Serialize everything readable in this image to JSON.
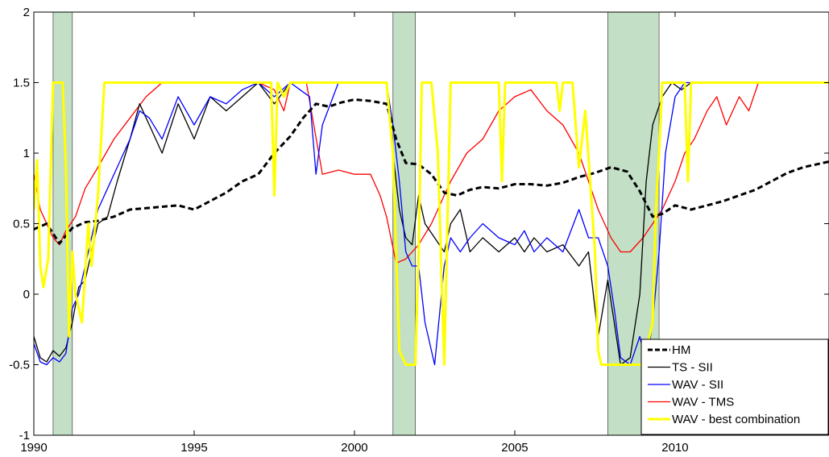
{
  "chart_data": {
    "type": "line",
    "title": "",
    "xlabel": "",
    "ylabel": "",
    "xlim": [
      1990,
      2014.8
    ],
    "ylim": [
      -1,
      2
    ],
    "grid": false,
    "legend_position": "bottom-right",
    "x_ticks": [
      1990,
      1995,
      2000,
      2005,
      2010
    ],
    "y_ticks": [
      -1,
      -0.5,
      0,
      0.5,
      1,
      1.5,
      2
    ],
    "x_tick_labels": [
      "1990",
      "1995",
      "2000",
      "2005",
      "2010"
    ],
    "y_tick_labels": [
      "-1",
      "-0.5",
      "0",
      "0.5",
      "1",
      "1.5",
      "2"
    ],
    "shaded_periods": [
      [
        1990.6,
        1991.2
      ],
      [
        2001.2,
        2001.9
      ],
      [
        2007.9,
        2009.5
      ]
    ],
    "shade_color": "#c3dfc5",
    "series": [
      {
        "name": "HM",
        "color": "#000000",
        "dash": "dashed",
        "width": 3,
        "x": [
          1990.0,
          1990.4,
          1990.8,
          1991.2,
          1991.6,
          1992.0,
          1992.5,
          1993.0,
          1993.5,
          1994.0,
          1994.5,
          1995.0,
          1995.5,
          1996.0,
          1996.5,
          1997.0,
          1997.5,
          1998.0,
          1998.4,
          1998.8,
          1999.2,
          1999.6,
          2000.0,
          2000.5,
          2001.0,
          2001.3,
          2001.6,
          2002.0,
          2002.4,
          2002.8,
          2003.2,
          2003.6,
          2004.0,
          2004.5,
          2005.0,
          2005.5,
          2006.0,
          2006.5,
          2007.0,
          2007.5,
          2008.0,
          2008.5,
          2008.9,
          2009.3,
          2009.6,
          2010.0,
          2010.5,
          2011.0,
          2011.5,
          2012.0,
          2012.5,
          2013.0,
          2013.5,
          2014.0,
          2014.8
        ],
        "y": [
          0.46,
          0.5,
          0.36,
          0.47,
          0.51,
          0.52,
          0.55,
          0.6,
          0.61,
          0.62,
          0.63,
          0.6,
          0.66,
          0.72,
          0.8,
          0.85,
          1.0,
          1.12,
          1.25,
          1.35,
          1.33,
          1.36,
          1.38,
          1.37,
          1.35,
          1.1,
          0.93,
          0.92,
          0.85,
          0.72,
          0.7,
          0.74,
          0.76,
          0.75,
          0.78,
          0.78,
          0.77,
          0.79,
          0.83,
          0.86,
          0.9,
          0.87,
          0.73,
          0.55,
          0.57,
          0.63,
          0.6,
          0.63,
          0.66,
          0.7,
          0.74,
          0.8,
          0.86,
          0.9,
          0.94
        ]
      },
      {
        "name": "TS - SII",
        "color": "#000000",
        "dash": "solid",
        "width": 1.3,
        "x": [
          1990.0,
          1990.2,
          1990.4,
          1990.6,
          1990.8,
          1991.0,
          1991.2,
          1991.4,
          1991.6,
          1991.8,
          1992.0,
          1992.3,
          1992.6,
          1993.0,
          1993.3,
          1993.6,
          1994.0,
          1994.5,
          1995.0,
          1995.5,
          1996.0,
          1996.5,
          1997.0,
          1997.5,
          1998.0,
          1998.5,
          1999.0,
          1999.5,
          2000.0,
          2000.5,
          2001.0,
          2001.2,
          2001.4,
          2001.6,
          2001.8,
          2002.0,
          2002.2,
          2002.5,
          2002.8,
          2003.0,
          2003.3,
          2003.6,
          2004.0,
          2004.5,
          2005.0,
          2005.3,
          2005.6,
          2006.0,
          2006.5,
          2007.0,
          2007.3,
          2007.6,
          2007.9,
          2008.1,
          2008.3,
          2008.6,
          2008.9,
          2009.1,
          2009.3,
          2009.6,
          2009.9,
          2010.2,
          2010.5
        ],
        "y": [
          -0.3,
          -0.45,
          -0.48,
          -0.4,
          -0.44,
          -0.38,
          -0.2,
          0.05,
          0.1,
          0.3,
          0.5,
          0.55,
          0.8,
          1.1,
          1.35,
          1.2,
          1.0,
          1.35,
          1.1,
          1.4,
          1.3,
          1.4,
          1.5,
          1.35,
          1.5,
          1.5,
          1.5,
          1.5,
          1.5,
          1.5,
          1.5,
          1.0,
          0.6,
          0.4,
          0.35,
          0.7,
          0.5,
          0.4,
          0.3,
          0.5,
          0.6,
          0.3,
          0.4,
          0.3,
          0.4,
          0.3,
          0.4,
          0.3,
          0.35,
          0.2,
          0.3,
          -0.3,
          0.1,
          -0.2,
          -0.5,
          -0.45,
          0.0,
          0.8,
          1.2,
          1.4,
          1.5,
          1.45,
          1.5
        ]
      },
      {
        "name": "WAV - SII",
        "color": "#0000ff",
        "dash": "solid",
        "width": 1.3,
        "x": [
          1990.0,
          1990.2,
          1990.4,
          1990.6,
          1990.8,
          1991.0,
          1991.2,
          1991.4,
          1991.6,
          1991.8,
          1992.0,
          1992.3,
          1992.6,
          1993.0,
          1993.3,
          1993.6,
          1994.0,
          1994.5,
          1995.0,
          1995.5,
          1996.0,
          1996.5,
          1997.0,
          1997.5,
          1998.0,
          1998.3,
          1998.6,
          1998.8,
          1999.0,
          1999.5,
          2000.0,
          2000.5,
          2001.0,
          2001.2,
          2001.4,
          2001.6,
          2001.8,
          2002.0,
          2002.2,
          2002.5,
          2002.8,
          2003.0,
          2003.3,
          2003.6,
          2004.0,
          2004.5,
          2005.0,
          2005.3,
          2005.6,
          2006.0,
          2006.5,
          2007.0,
          2007.3,
          2007.6,
          2007.9,
          2008.1,
          2008.3,
          2008.6,
          2008.9,
          2009.1,
          2009.3,
          2009.5,
          2009.7,
          2010.0,
          2010.3,
          2010.6
        ],
        "y": [
          -0.35,
          -0.48,
          -0.5,
          -0.45,
          -0.48,
          -0.42,
          -0.1,
          0.0,
          0.2,
          0.4,
          0.6,
          0.75,
          0.9,
          1.1,
          1.3,
          1.25,
          1.1,
          1.4,
          1.2,
          1.4,
          1.35,
          1.45,
          1.5,
          1.4,
          1.5,
          1.45,
          1.4,
          0.85,
          1.2,
          1.5,
          1.5,
          1.5,
          1.5,
          1.2,
          0.8,
          0.3,
          0.2,
          0.2,
          -0.2,
          -0.5,
          0.2,
          0.4,
          0.3,
          0.4,
          0.5,
          0.4,
          0.35,
          0.45,
          0.3,
          0.4,
          0.3,
          0.6,
          0.4,
          0.4,
          0.2,
          -0.1,
          -0.45,
          -0.5,
          -0.3,
          -0.5,
          -0.2,
          0.3,
          1.0,
          1.4,
          1.5,
          1.5
        ]
      },
      {
        "name": "WAV - TMS",
        "color": "#ff0000",
        "dash": "solid",
        "width": 1.3,
        "x": [
          1990.0,
          1990.2,
          1990.4,
          1990.6,
          1990.8,
          1991.0,
          1991.3,
          1991.6,
          1992.0,
          1992.5,
          1993.0,
          1993.5,
          1994.0,
          1995.0,
          1996.0,
          1997.0,
          1997.5,
          1997.8,
          1998.0,
          1998.5,
          1999.0,
          1999.5,
          2000.0,
          2000.5,
          2000.8,
          2001.0,
          2001.3,
          2001.6,
          2002.0,
          2002.4,
          2002.8,
          2003.0,
          2003.5,
          2004.0,
          2004.5,
          2005.0,
          2005.5,
          2006.0,
          2006.5,
          2007.0,
          2007.3,
          2007.6,
          2008.0,
          2008.3,
          2008.6,
          2009.0,
          2009.3,
          2009.6,
          2010.0,
          2010.3,
          2010.6,
          2011.0,
          2011.3,
          2011.6,
          2012.0,
          2012.3,
          2012.6
        ],
        "y": [
          0.85,
          0.6,
          0.5,
          0.4,
          0.35,
          0.45,
          0.55,
          0.75,
          0.9,
          1.1,
          1.25,
          1.4,
          1.5,
          1.5,
          1.5,
          1.5,
          1.45,
          1.3,
          1.5,
          1.5,
          0.85,
          0.88,
          0.85,
          0.85,
          0.7,
          0.55,
          0.22,
          0.25,
          0.35,
          0.5,
          0.7,
          0.8,
          1.0,
          1.1,
          1.3,
          1.4,
          1.45,
          1.3,
          1.2,
          1.0,
          0.8,
          0.6,
          0.4,
          0.3,
          0.3,
          0.4,
          0.5,
          0.6,
          0.8,
          1.0,
          1.1,
          1.3,
          1.4,
          1.2,
          1.4,
          1.3,
          1.5
        ]
      },
      {
        "name": "WAV - best combination",
        "color": "#ffff00",
        "dash": "solid",
        "width": 3,
        "x": [
          1990.0,
          1990.1,
          1990.2,
          1990.3,
          1990.45,
          1990.6,
          1990.7,
          1990.9,
          1991.0,
          1991.1,
          1991.2,
          1991.3,
          1991.5,
          1991.7,
          1991.8,
          1992.0,
          1992.2,
          1993.0,
          1994.0,
          1995.0,
          1996.0,
          1997.0,
          1997.4,
          1997.5,
          1997.6,
          1997.8,
          1998.0,
          1999.0,
          2000.0,
          2001.0,
          2001.2,
          2001.4,
          2001.6,
          2001.8,
          2001.9,
          2002.0,
          2002.1,
          2002.2,
          2002.4,
          2002.6,
          2002.8,
          2002.9,
          2003.0,
          2003.2,
          2003.4,
          2003.6,
          2004.0,
          2004.5,
          2004.6,
          2004.7,
          2005.0,
          2005.5,
          2006.0,
          2006.3,
          2006.4,
          2006.5,
          2006.8,
          2007.0,
          2007.2,
          2007.5,
          2007.6,
          2007.7,
          2007.8,
          2008.0,
          2008.5,
          2009.0,
          2009.1,
          2009.3,
          2009.4,
          2009.5,
          2009.6,
          2009.8,
          2010.0,
          2010.3,
          2010.4,
          2010.5,
          2011.0,
          2012.0,
          2013.0,
          2014.0,
          2014.8
        ],
        "y": [
          0.6,
          0.95,
          0.2,
          0.05,
          0.25,
          1.5,
          1.5,
          1.5,
          0.9,
          -0.3,
          0.3,
          0.0,
          -0.2,
          0.5,
          0.2,
          0.7,
          1.5,
          1.5,
          1.5,
          1.5,
          1.5,
          1.5,
          1.5,
          0.7,
          1.5,
          1.4,
          1.5,
          1.5,
          1.5,
          1.5,
          1.0,
          -0.4,
          -0.5,
          -0.5,
          -0.5,
          0.3,
          1.5,
          1.5,
          1.5,
          1.0,
          -0.5,
          0.5,
          1.5,
          1.5,
          1.5,
          1.5,
          1.5,
          1.5,
          0.8,
          1.5,
          1.5,
          1.5,
          1.5,
          1.5,
          1.3,
          1.5,
          1.5,
          0.9,
          1.3,
          0.3,
          -0.4,
          -0.5,
          -0.5,
          -0.5,
          -0.5,
          -0.5,
          -0.4,
          -0.2,
          0.6,
          1.0,
          1.5,
          1.5,
          1.5,
          1.5,
          0.8,
          1.5,
          1.5,
          1.5,
          1.5,
          1.5,
          1.5
        ]
      }
    ]
  }
}
